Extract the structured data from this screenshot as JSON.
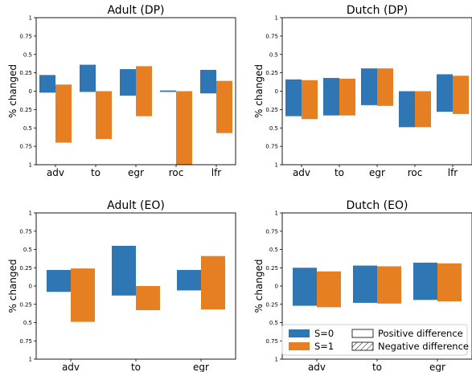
{
  "colors": {
    "s0": "#2f77b4",
    "s1": "#e67e22"
  },
  "yticks": [
    "1",
    "0.75",
    "0.5",
    "0.25",
    "0",
    "0.25",
    "0.5",
    "0.75",
    "1"
  ],
  "legend": {
    "s0": "S=0",
    "s1": "S=1",
    "pos": "Positive difference",
    "neg": "Negative difference",
    "placement": "bottom-right panel, lower area"
  },
  "chart_data": [
    {
      "type": "bar",
      "title": "Adult (DP)",
      "ylabel": "% changed",
      "ylim": [
        -1,
        1
      ],
      "categories": [
        "adv",
        "to",
        "egr",
        "roc",
        "lfr"
      ],
      "series": [
        {
          "name": "S=0",
          "pos": [
            0.22,
            0.36,
            0.3,
            0.01,
            0.29
          ],
          "neg": [
            -0.02,
            -0.01,
            -0.06,
            -0.01,
            -0.03
          ]
        },
        {
          "name": "S=1",
          "pos": [
            0.09,
            0.0,
            0.34,
            0.0,
            0.14
          ],
          "neg": [
            -0.7,
            -0.65,
            -0.34,
            -1.0,
            -0.57
          ]
        }
      ]
    },
    {
      "type": "bar",
      "title": "Dutch (DP)",
      "ylabel": "% changed",
      "ylim": [
        -1,
        1
      ],
      "categories": [
        "adv",
        "to",
        "egr",
        "roc",
        "lfr"
      ],
      "series": [
        {
          "name": "S=0",
          "pos": [
            0.16,
            0.18,
            0.31,
            0.0,
            0.23
          ],
          "neg": [
            -0.34,
            -0.33,
            -0.19,
            -0.49,
            -0.28
          ]
        },
        {
          "name": "S=1",
          "pos": [
            0.15,
            0.17,
            0.31,
            0.0,
            0.21
          ],
          "neg": [
            -0.38,
            -0.33,
            -0.2,
            -0.49,
            -0.31
          ]
        }
      ]
    },
    {
      "type": "bar",
      "title": "Adult (EO)",
      "ylabel": "% changed",
      "ylim": [
        -1,
        1
      ],
      "categories": [
        "adv",
        "to",
        "egr"
      ],
      "series": [
        {
          "name": "S=0",
          "pos": [
            0.22,
            0.55,
            0.22
          ],
          "neg": [
            -0.08,
            -0.13,
            -0.06
          ]
        },
        {
          "name": "S=1",
          "pos": [
            0.24,
            0.0,
            0.41
          ],
          "neg": [
            -0.49,
            -0.33,
            -0.32
          ]
        }
      ]
    },
    {
      "type": "bar",
      "title": "Dutch (EO)",
      "ylabel": "% changed",
      "ylim": [
        -1,
        1
      ],
      "categories": [
        "adv",
        "to",
        "egr"
      ],
      "series": [
        {
          "name": "S=0",
          "pos": [
            0.25,
            0.28,
            0.32
          ],
          "neg": [
            -0.27,
            -0.23,
            -0.19
          ]
        },
        {
          "name": "S=1",
          "pos": [
            0.2,
            0.27,
            0.31
          ],
          "neg": [
            -0.29,
            -0.24,
            -0.21
          ]
        }
      ]
    }
  ]
}
